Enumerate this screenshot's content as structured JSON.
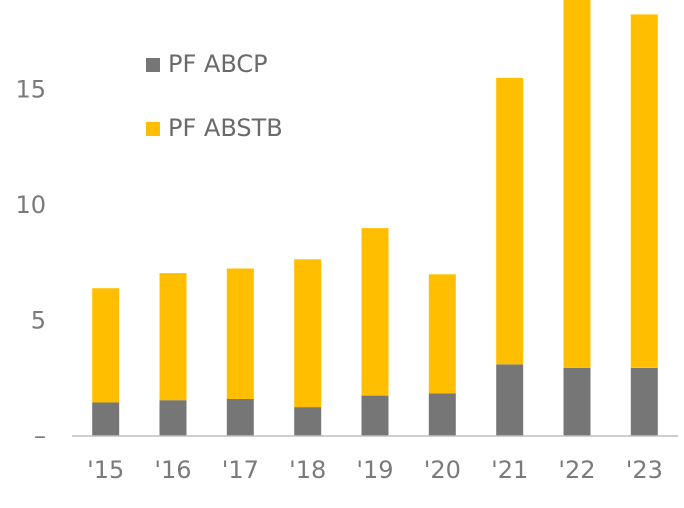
{
  "chart_data": {
    "type": "bar",
    "stacked": true,
    "categories": [
      "'15",
      "'16",
      "'17",
      "'18",
      "'19",
      "'20",
      "'21",
      "'22",
      "'23"
    ],
    "series": [
      {
        "name": "PF ABCP",
        "color": "#767676",
        "values": [
          1.45,
          1.55,
          1.6,
          1.25,
          1.75,
          1.85,
          3.1,
          2.95,
          2.95
        ]
      },
      {
        "name": "PF ABSTB",
        "color": "#FFBF00",
        "values": [
          4.95,
          5.5,
          5.65,
          6.4,
          7.25,
          5.15,
          12.4,
          16.05,
          15.3
        ]
      }
    ],
    "y_ticks": [
      {
        "value": 0,
        "label": "–"
      },
      {
        "value": 5,
        "label": "5"
      },
      {
        "value": 10,
        "label": "10"
      },
      {
        "value": 15,
        "label": "15"
      }
    ],
    "ylim": [
      0,
      19
    ],
    "grid": false,
    "legend_position": "top-left"
  }
}
